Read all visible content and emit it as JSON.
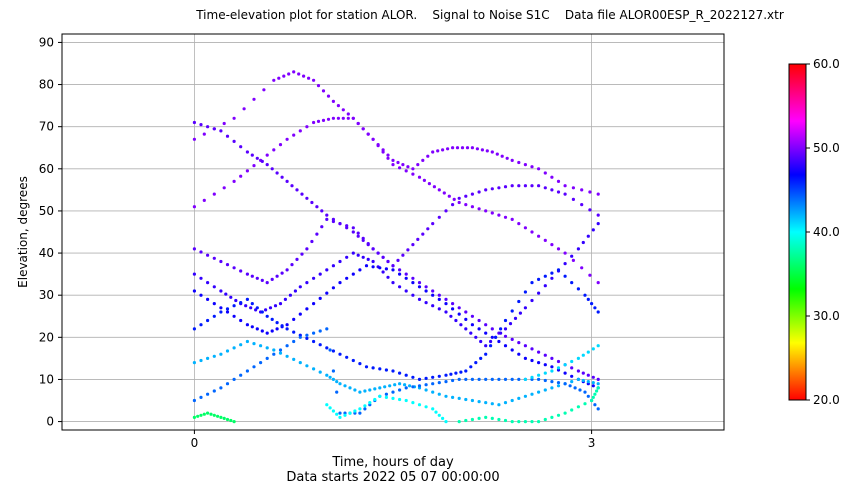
{
  "chart_data": {
    "type": "scatter",
    "title": "Time-elevation plot for station ALOR.    Signal to Noise S1C    Data file ALOR00ESP_R_2022127.xtr",
    "xlabel": "Time, hours of day",
    "xlabel2": "Data starts 2022 05 07 00:00:00",
    "ylabel": "Elevation, degrees",
    "xlim": [
      -1,
      4
    ],
    "ylim": [
      -2,
      92
    ],
    "xticks": [
      0,
      3
    ],
    "xtick_labels": [
      "0",
      "3"
    ],
    "yticks": [
      0,
      10,
      20,
      30,
      40,
      50,
      60,
      70,
      80,
      90
    ],
    "ytick_labels": [
      "0",
      "10",
      "20",
      "30",
      "40",
      "50",
      "60",
      "70",
      "80",
      "90"
    ],
    "grid": true,
    "colorbar": {
      "range": [
        20,
        60
      ],
      "ticks": [
        20,
        30,
        40,
        50,
        60
      ],
      "tick_labels": [
        "20.0",
        "30.0",
        "40.0",
        "50.0",
        "60.0"
      ],
      "colormap": "hsv-like (red-yellow-green-cyan-blue-magenta-red)"
    },
    "tracks": [
      {
        "x": [
          0.0,
          0.3,
          0.6,
          0.75,
          0.9,
          1.05,
          1.2,
          1.35,
          1.5,
          1.7,
          1.85,
          2.0,
          2.2,
          2.4,
          2.6,
          2.8,
          3.05
        ],
        "y": [
          67,
          72,
          81,
          83,
          81,
          76,
          72,
          67,
          61,
          58,
          55,
          52,
          50,
          48,
          44,
          40,
          33
        ],
        "snr": 50
      },
      {
        "x": [
          0.0,
          0.3,
          0.5,
          0.7,
          0.9,
          1.05,
          1.2,
          1.35,
          1.5,
          1.65,
          1.8,
          1.95,
          2.1,
          2.25,
          2.4,
          2.6,
          2.8,
          3.05
        ],
        "y": [
          51,
          57,
          62,
          67,
          71,
          72,
          72,
          67,
          62,
          60,
          64,
          65,
          65,
          64,
          62,
          60,
          56,
          54
        ],
        "snr": 50
      },
      {
        "x": [
          0.0,
          0.2,
          0.4,
          0.55,
          0.7,
          0.85,
          1.0,
          1.2,
          1.35,
          1.5,
          1.7,
          1.9,
          2.1,
          2.3,
          2.5,
          2.7,
          2.9,
          3.05
        ],
        "y": [
          71,
          69,
          64,
          61,
          57,
          53,
          49,
          45,
          41,
          37,
          33,
          29,
          25,
          21,
          18,
          15,
          12,
          10
        ],
        "snr": 49
      },
      {
        "x": [
          0.0,
          0.2,
          0.4,
          0.55,
          0.7,
          0.85,
          1.0,
          1.2,
          1.35,
          1.5,
          1.65,
          1.8,
          2.0,
          2.2,
          2.4,
          2.6,
          2.8,
          3.05
        ],
        "y": [
          41,
          38,
          35,
          33,
          36,
          41,
          48,
          46,
          41,
          37,
          42,
          47,
          53,
          55,
          56,
          56,
          54,
          49
        ],
        "snr": 49
      },
      {
        "x": [
          0.0,
          0.2,
          0.35,
          0.5,
          0.65,
          0.8,
          1.0,
          1.2,
          1.35,
          1.5,
          1.7,
          1.9,
          2.05,
          2.2,
          2.35,
          2.5,
          2.7,
          2.9,
          3.05
        ],
        "y": [
          35,
          31,
          28,
          26,
          28,
          32,
          36,
          40,
          38,
          33,
          29,
          26,
          22,
          18,
          22,
          27,
          34,
          41,
          47
        ],
        "snr": 48
      },
      {
        "x": [
          0.0,
          0.2,
          0.4,
          0.55,
          0.7,
          0.9,
          1.1,
          1.3,
          1.5,
          1.7,
          1.9,
          2.1,
          2.3,
          2.5,
          2.7,
          2.9,
          3.05
        ],
        "y": [
          31,
          27,
          23,
          21,
          23,
          28,
          33,
          37,
          36,
          32,
          28,
          23,
          19,
          15,
          13,
          10,
          8
        ],
        "snr": 47
      },
      {
        "x": [
          0.0,
          0.2,
          0.4,
          0.55,
          0.7,
          0.9,
          1.1,
          1.3,
          1.5,
          1.7,
          1.9,
          2.05,
          2.2,
          2.35,
          2.55,
          2.75,
          2.95,
          3.05
        ],
        "y": [
          22,
          26,
          29,
          25,
          22,
          19,
          16,
          13,
          12,
          10,
          11,
          12,
          16,
          24,
          33,
          36,
          30,
          26
        ],
        "snr": 46
      },
      {
        "x": [
          0.0,
          0.2,
          0.4,
          0.6,
          0.8,
          1.0,
          1.1,
          1.25,
          1.4,
          1.55,
          1.7,
          1.9,
          2.1,
          2.3,
          2.5,
          2.7,
          2.9,
          3.05
        ],
        "y": [
          14,
          16,
          19,
          17,
          14,
          11,
          9,
          7,
          8,
          9,
          8,
          6,
          5,
          4,
          6,
          8,
          10,
          9
        ],
        "snr": 42
      },
      {
        "x": [
          0.0,
          0.2,
          0.4,
          0.6,
          0.8,
          1.0,
          1.1,
          1.25,
          1.4,
          1.6,
          1.8,
          2.0,
          2.2,
          2.4,
          2.6,
          2.8,
          2.95,
          3.05
        ],
        "y": [
          5,
          8,
          12,
          16,
          20,
          22,
          2,
          2,
          6,
          8,
          9,
          10,
          10,
          10,
          10,
          9,
          7,
          3
        ],
        "snr": 44
      },
      {
        "x": [
          0.0,
          0.1,
          0.2,
          0.3
        ],
        "y": [
          1,
          2,
          1,
          0
        ],
        "snr": 36
      },
      {
        "x": [
          1.0,
          1.1,
          1.25,
          1.4,
          1.6,
          1.8,
          1.9
        ],
        "y": [
          4,
          1,
          3,
          6,
          5,
          3,
          0
        ],
        "snr": 40
      },
      {
        "x": [
          2.0,
          2.2,
          2.4,
          2.6,
          2.8,
          3.0,
          3.05
        ],
        "y": [
          0,
          1,
          0,
          0,
          2,
          5,
          8
        ],
        "snr": 38
      },
      {
        "x": [
          2.5,
          2.7,
          2.9,
          3.05
        ],
        "y": [
          10,
          12,
          15,
          18
        ],
        "snr": 41
      }
    ]
  }
}
